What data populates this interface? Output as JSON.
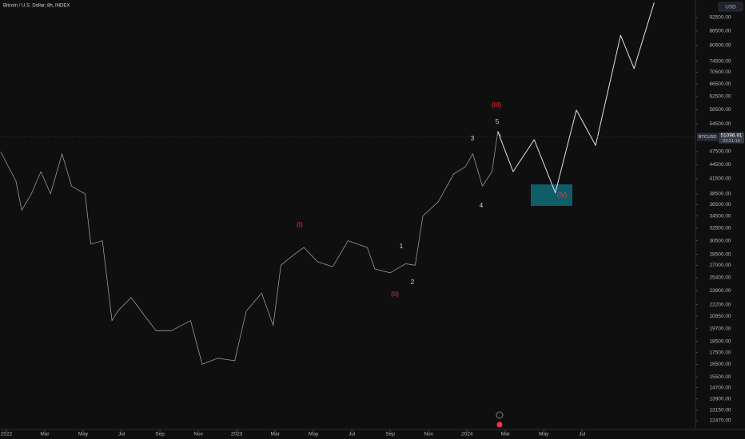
{
  "chart_data": {
    "type": "line",
    "title": "Bitcoin / U.S. Dollar, 8h, INDEX",
    "currency": "USD",
    "symbol": "BTCUSD",
    "last_price": 51096.91,
    "countdown": "03:21:19",
    "log_scale": true,
    "xlim": [
      -0.333,
      35.9
    ],
    "ylim": [
      11937,
      100940
    ],
    "xticks": [
      {
        "value": 0,
        "label": "2022"
      },
      {
        "value": 2,
        "label": "Mar"
      },
      {
        "value": 4,
        "label": "May"
      },
      {
        "value": 6,
        "label": "Jul"
      },
      {
        "value": 8,
        "label": "Sep"
      },
      {
        "value": 10,
        "label": "Nov"
      },
      {
        "value": 12,
        "label": "2023"
      },
      {
        "value": 14,
        "label": "Mar"
      },
      {
        "value": 16,
        "label": "May"
      },
      {
        "value": 18,
        "label": "Jul"
      },
      {
        "value": 20,
        "label": "Sep"
      },
      {
        "value": 22,
        "label": "Nov"
      },
      {
        "value": 24,
        "label": "2024"
      },
      {
        "value": 26,
        "label": "Mar"
      },
      {
        "value": 28,
        "label": "May"
      },
      {
        "value": 30,
        "label": "Jul"
      }
    ],
    "yticks": [
      {
        "value": 92500,
        "label": "92500.00"
      },
      {
        "value": 86500,
        "label": "86500.00"
      },
      {
        "value": 80500,
        "label": "80500.00"
      },
      {
        "value": 74500,
        "label": "74500.00"
      },
      {
        "value": 70500,
        "label": "70500.00"
      },
      {
        "value": 66500,
        "label": "66500.00"
      },
      {
        "value": 62500,
        "label": "62500.00"
      },
      {
        "value": 58500,
        "label": "58500.00"
      },
      {
        "value": 54500,
        "label": "54500.00"
      },
      {
        "value": 47500,
        "label": "47500.00"
      },
      {
        "value": 44500,
        "label": "44500.00"
      },
      {
        "value": 41500,
        "label": "41500.00"
      },
      {
        "value": 38500,
        "label": "38500.00"
      },
      {
        "value": 36500,
        "label": "36500.00"
      },
      {
        "value": 34500,
        "label": "34500.00"
      },
      {
        "value": 32500,
        "label": "32500.00"
      },
      {
        "value": 30500,
        "label": "30500.00"
      },
      {
        "value": 28500,
        "label": "28500.00"
      },
      {
        "value": 27000,
        "label": "27000.00"
      },
      {
        "value": 25400,
        "label": "25400.00"
      },
      {
        "value": 23800,
        "label": "23800.00"
      },
      {
        "value": 22200,
        "label": "22200.00"
      },
      {
        "value": 20950,
        "label": "20950.00"
      },
      {
        "value": 19700,
        "label": "19700.00"
      },
      {
        "value": 18500,
        "label": "18500.00"
      },
      {
        "value": 17500,
        "label": "17500.00"
      },
      {
        "value": 16500,
        "label": "16500.00"
      },
      {
        "value": 15500,
        "label": "15500.00"
      },
      {
        "value": 14700,
        "label": "14700.00"
      },
      {
        "value": 13900,
        "label": "13900.00"
      },
      {
        "value": 13150,
        "label": "13150.00"
      },
      {
        "value": 12470,
        "label": "12470.00"
      }
    ],
    "series": [
      {
        "color": "#9598a1",
        "x": [
          -0.3,
          0.5,
          0.8,
          1.3,
          1.8,
          2.3,
          2.9,
          3.4,
          4.1,
          4.4,
          5.0,
          5.5,
          5.8,
          6.5,
          7.2,
          7.8,
          8.6,
          9.6,
          10.2,
          11.0,
          11.9,
          12.5,
          13.3,
          13.9,
          14.3,
          15.0,
          15.5,
          16.2,
          17.0,
          17.8,
          18.8,
          19.2,
          20.0,
          20.8,
          21.3,
          21.7,
          22.5,
          23.3,
          23.9,
          24.3,
          24.8,
          25.3,
          25.6,
          25.8
        ],
        "values": [
          47500,
          41000,
          35500,
          38500,
          43000,
          38500,
          47000,
          40000,
          38500,
          30000,
          30500,
          20500,
          21500,
          23000,
          21000,
          19500,
          19500,
          20500,
          16500,
          17000,
          16800,
          21500,
          23500,
          20000,
          27000,
          28500,
          29500,
          27500,
          26800,
          30500,
          29500,
          26500,
          26000,
          27200,
          27000,
          34500,
          37000,
          42500,
          44000,
          47000,
          40000,
          43000,
          52500,
          51096.91
        ]
      },
      {
        "color": "#e0e3eb",
        "x": [
          25.6,
          26.4,
          27.5,
          28.6,
          29.7,
          30.7,
          32.0,
          32.7,
          33.75
        ],
        "values": [
          52500,
          43000,
          50400,
          38700,
          58400,
          49000,
          84700,
          71800,
          99700
        ]
      }
    ],
    "annotations": [
      {
        "text": "(I)",
        "color": "#f23645"
      },
      {
        "text": "(II)",
        "color": "#f23645"
      },
      {
        "text": "(III)",
        "color": "#f23645"
      },
      {
        "text": "(IV)",
        "color": "#f23645"
      },
      {
        "text": "1",
        "color": "#d1d4dc"
      },
      {
        "text": "2",
        "color": "#d1d4dc"
      },
      {
        "text": "3",
        "color": "#d1d4dc"
      },
      {
        "text": "4",
        "color": "#d1d4dc"
      },
      {
        "text": "5",
        "color": "#d1d4dc"
      }
    ]
  }
}
